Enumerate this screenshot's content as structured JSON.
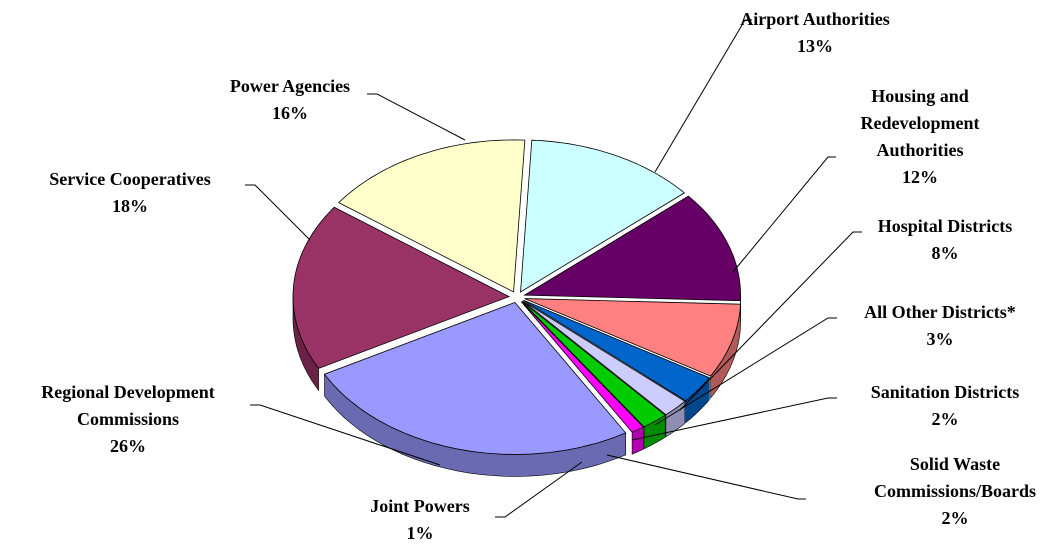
{
  "chart_data": {
    "type": "pie",
    "categories": [
      "Airport Authorities",
      "Housing and\nRedevelopment\nAuthorities",
      "Hospital Districts",
      "All Other Districts*",
      "Sanitation Districts",
      "Solid Waste\nCommissions/Boards",
      "Joint Powers",
      "Regional Development\nCommissions",
      "Service Cooperatives",
      "Power Agencies"
    ],
    "values": [
      13,
      12,
      8,
      3,
      2,
      2,
      1,
      26,
      18,
      16
    ],
    "value_labels": [
      "13%",
      "12%",
      "8%",
      "3%",
      "2%",
      "2%",
      "1%",
      "26%",
      "18%",
      "16%"
    ],
    "colors": [
      "#ccffff",
      "#660066",
      "#ff8080",
      "#0066cc",
      "#ccccff",
      "#00cc00",
      "#ff00ff",
      "#9999ff",
      "#993366",
      "#ffffcc"
    ]
  }
}
